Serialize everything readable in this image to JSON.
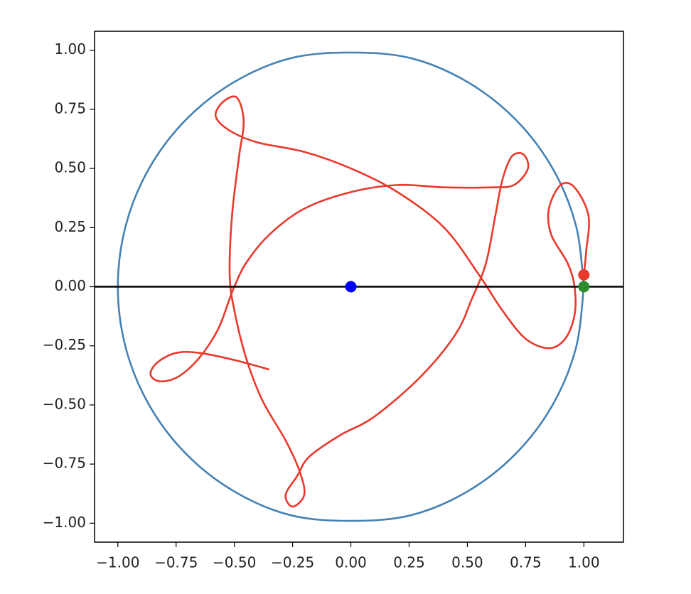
{
  "chart_data": {
    "type": "line",
    "xlim": [
      -1.1,
      1.17
    ],
    "ylim": [
      -1.08,
      1.08
    ],
    "xticks": [
      {
        "value": -1,
        "label": "−1.00"
      },
      {
        "value": -0.75,
        "label": "−0.75"
      },
      {
        "value": -0.5,
        "label": "−0.50"
      },
      {
        "value": -0.25,
        "label": "−0.25"
      },
      {
        "value": 0,
        "label": "0.00"
      },
      {
        "value": 0.25,
        "label": "0.25"
      },
      {
        "value": 0.5,
        "label": "0.50"
      },
      {
        "value": 0.75,
        "label": "0.75"
      },
      {
        "value": 1,
        "label": "1.00"
      }
    ],
    "yticks": [
      {
        "value": -1,
        "label": "−1.00"
      },
      {
        "value": -0.75,
        "label": "−0.75"
      },
      {
        "value": -0.5,
        "label": "−0.50"
      },
      {
        "value": -0.25,
        "label": "−0.25"
      },
      {
        "value": 0,
        "label": "0.00"
      },
      {
        "value": 0.25,
        "label": "0.25"
      },
      {
        "value": 0.5,
        "label": "0.50"
      },
      {
        "value": 0.75,
        "label": "0.75"
      },
      {
        "value": 1,
        "label": "1.00"
      }
    ],
    "hline": {
      "y": 0,
      "color": "#000000"
    },
    "series": [
      {
        "type": "line",
        "color": "#4682b4",
        "x": [
          1,
          0.966,
          0.866,
          0.707,
          0.5,
          0.259,
          0,
          -0.259,
          -0.5,
          -0.707,
          -0.866,
          -0.966,
          -1,
          -0.966,
          -0.866,
          -0.707,
          -0.5,
          -0.259,
          0,
          0.259,
          0.5,
          0.707,
          0.866,
          0.966,
          1
        ],
        "y": [
          0,
          0.259,
          0.5,
          0.707,
          0.866,
          0.966,
          0.99,
          0.966,
          0.866,
          0.707,
          0.5,
          0.259,
          0,
          -0.259,
          -0.5,
          -0.707,
          -0.866,
          -0.966,
          -0.99,
          -0.966,
          -0.866,
          -0.707,
          -0.5,
          -0.259,
          0
        ]
      },
      {
        "type": "line",
        "color": "#e8392c",
        "x": [
          -0.35,
          -0.5,
          -0.65,
          -0.75,
          -0.83,
          -0.86,
          -0.82,
          -0.74,
          -0.65,
          -0.57,
          -0.52,
          -0.5,
          -0.45,
          -0.35,
          -0.2,
          0,
          0.2,
          0.4,
          0.6,
          0.7,
          0.76,
          0.74,
          0.69,
          0.65,
          0.62,
          0.58,
          0.52,
          0.45,
          0.3,
          0.1,
          -0.05,
          -0.18,
          -0.23,
          -0.28,
          -0.25,
          -0.2,
          -0.22,
          -0.28,
          -0.38,
          -0.45,
          -0.5,
          -0.52,
          -0.51,
          -0.48,
          -0.46,
          -0.49,
          -0.55,
          -0.58,
          -0.52,
          -0.4,
          -0.2,
          0,
          0.2,
          0.4,
          0.55,
          0.65,
          0.75,
          0.85,
          0.92,
          0.96,
          0.96,
          0.93,
          0.86,
          0.85,
          0.9,
          0.96,
          1.02,
          1.01,
          1.0
        ],
        "y": [
          -0.35,
          -0.31,
          -0.28,
          -0.28,
          -0.32,
          -0.37,
          -0.4,
          -0.38,
          -0.3,
          -0.18,
          -0.05,
          0,
          0.1,
          0.22,
          0.33,
          0.4,
          0.43,
          0.42,
          0.42,
          0.43,
          0.5,
          0.56,
          0.55,
          0.45,
          0.3,
          0.1,
          -0.05,
          -0.2,
          -0.38,
          -0.55,
          -0.63,
          -0.72,
          -0.8,
          -0.88,
          -0.93,
          -0.88,
          -0.78,
          -0.65,
          -0.48,
          -0.3,
          -0.1,
          0.05,
          0.3,
          0.55,
          0.7,
          0.8,
          0.78,
          0.72,
          0.66,
          0.61,
          0.57,
          0.5,
          0.4,
          0.25,
          0.05,
          -0.1,
          -0.22,
          -0.26,
          -0.22,
          -0.12,
          0.0,
          0.1,
          0.22,
          0.33,
          0.43,
          0.42,
          0.3,
          0.15,
          0.05
        ]
      },
      {
        "type": "scatter",
        "color": "#0000ff",
        "x": [
          0
        ],
        "y": [
          0
        ]
      },
      {
        "type": "scatter",
        "color": "#2e8b2e",
        "x": [
          1.0
        ],
        "y": [
          0
        ]
      },
      {
        "type": "scatter",
        "color": "#e8392c",
        "x": [
          1.0
        ],
        "y": [
          0.05
        ]
      }
    ]
  }
}
